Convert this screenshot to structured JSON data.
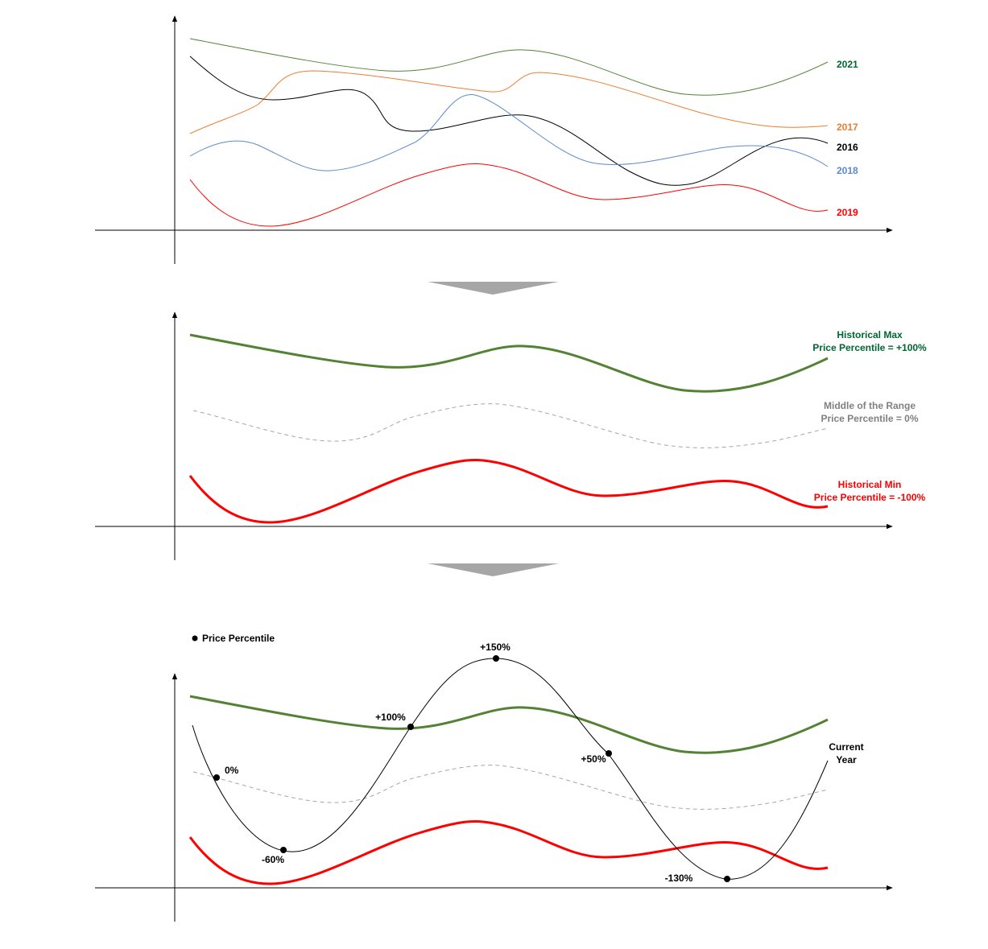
{
  "colors": {
    "y2021": "#548235",
    "y2017": "#ED7D31",
    "y2016": "#000000",
    "y2018": "#5B8BC9",
    "y2019": "#FF0000",
    "max": "#548235",
    "min": "#FF0000",
    "middle": "#A6A6A6",
    "max_label": "#006633",
    "middle_label": "#808080",
    "arrow": "#A6A6A6"
  },
  "panel1": {
    "series_labels": {
      "y2021": "2021",
      "y2017": "2017",
      "y2016": "2016",
      "y2018": "2018",
      "y2019": "2019"
    }
  },
  "panel2": {
    "max_line1": "Historical Max",
    "max_line2": "Price Percentile = +100%",
    "middle_line1": "Middle of the Range",
    "middle_line2": "Price Percentile = 0%",
    "min_line1": "Historical Min",
    "min_line2": "Price Percentile = -100%"
  },
  "panel3": {
    "legend": "Price Percentile",
    "current_line1": "Current",
    "current_line2": "Year",
    "points": [
      {
        "label": "0%"
      },
      {
        "label": "-60%"
      },
      {
        "label": "+100%"
      },
      {
        "label": "+150%"
      },
      {
        "label": "+50%"
      },
      {
        "label": "-130%"
      }
    ]
  }
}
